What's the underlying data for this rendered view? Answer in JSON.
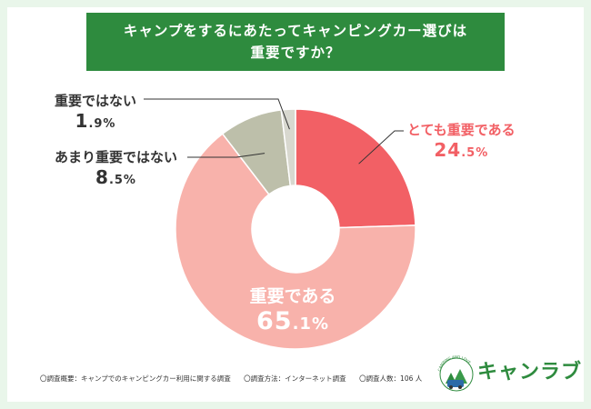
{
  "title": {
    "line1": "キャンプをするにあたってキャンピングカー選びは",
    "line2": "重要ですか？"
  },
  "chart_data": {
    "type": "pie",
    "donut": true,
    "categories": [
      "とても重要である",
      "重要である",
      "あまり重要ではない",
      "重要ではない"
    ],
    "values": [
      24.5,
      65.1,
      8.5,
      1.9
    ],
    "colors": [
      "#f26065",
      "#f8b2ab",
      "#bdbfaa",
      "#d8d8cf"
    ],
    "percent_labels": [
      {
        "int": "24",
        "dec": ".5%"
      },
      {
        "int": "65",
        "dec": ".1%"
      },
      {
        "int": "8",
        "dec": ".5%"
      },
      {
        "int": "1",
        "dec": ".9%"
      }
    ]
  },
  "footer": {
    "overview": "〇調査概要：キャンプでのキャンピングカー利用に関する調査",
    "method": "〇調査方法：インターネット調査",
    "count": "〇調査人数：106 人"
  },
  "logo": {
    "text": "キャンラブ",
    "arc_text": "CAMPING AND LOVE"
  }
}
